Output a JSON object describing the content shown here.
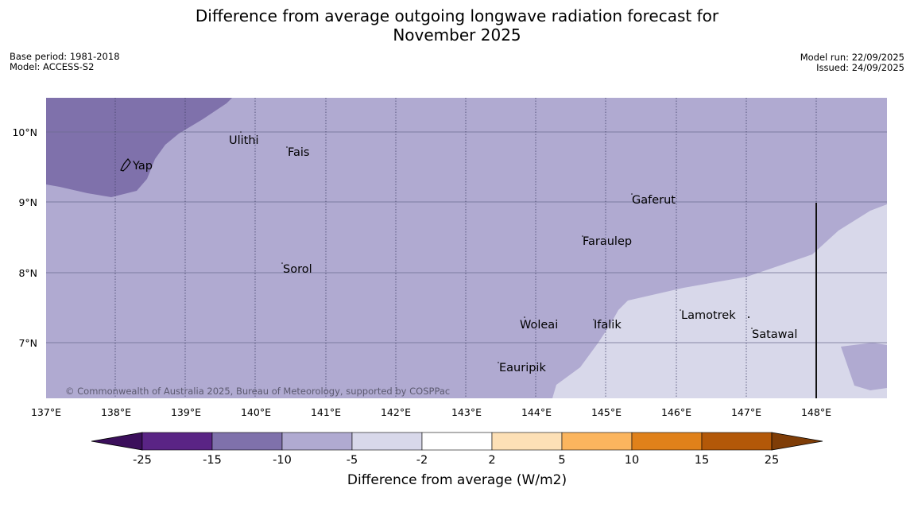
{
  "header": {
    "title_line1": "Difference from average outgoing longwave radiation forecast for",
    "title_line2": "November 2025",
    "base_period": "Base period: 1981-2018",
    "model": "Model: ACCESS-S2",
    "model_run": "Model run: 22/09/2025",
    "issued": "Issued: 24/09/2025"
  },
  "map": {
    "lat_ticks": [
      "10°N",
      "9°N",
      "8°N",
      "7°N"
    ],
    "lon_ticks": [
      "137°E",
      "138°E",
      "139°E",
      "140°E",
      "141°E",
      "142°E",
      "143°E",
      "144°E",
      "145°E",
      "146°E",
      "147°E",
      "148°E"
    ],
    "places": [
      "Yap",
      "Ulithi",
      "Fais",
      "Gaferut",
      "Faraulep",
      "Sorol",
      "Lamotrek",
      "Woleai",
      "Ifalik",
      "Satawal",
      "Eauripik"
    ],
    "copyright": "© Commonwealth of Australia 2025, Bureau of Meteorology, supported by COSPPac",
    "colors": {
      "band_minus15_minus10": "#7f71ab",
      "band_minus10_minus5": "#b0aad1",
      "band_minus5_minus2": "#d8d8ea"
    }
  },
  "colorbar": {
    "ticks": [
      "-25",
      "-15",
      "-10",
      "-5",
      "-2",
      "2",
      "5",
      "10",
      "15",
      "25"
    ],
    "label": "Difference from average (W/m2)",
    "colors": [
      "#3b0f5b",
      "#5a2485",
      "#7f71ab",
      "#b0aad1",
      "#d8d8ea",
      "#ffffff",
      "#fde0b6",
      "#fbb55e",
      "#e0811a",
      "#b35808",
      "#7f3d07"
    ]
  }
}
